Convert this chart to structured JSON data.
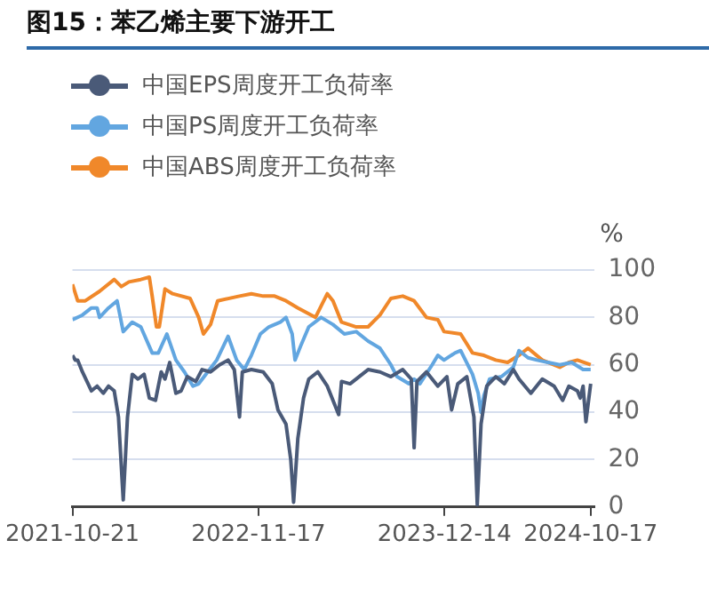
{
  "chart_data": {
    "type": "line",
    "title": "图15：苯乙烯主要下游开工",
    "ylabel": "%",
    "xlim": [
      "2021-10-21",
      "2024-10-24"
    ],
    "xticks": [
      "2021-10-21",
      "2022-11-17",
      "2023-12-14",
      "2024-10-17"
    ],
    "ylim": [
      0,
      100
    ],
    "yticks": [
      0,
      20,
      40,
      60,
      80,
      100
    ],
    "grid": "y",
    "legend": "top left",
    "marker": "none",
    "line_style": "solid",
    "series": [
      {
        "name": "中国EPS周度开工负荷率",
        "color": "#4a5a78",
        "x": [
          "2021-10-21",
          "2021-10-27",
          "2021-11-01",
          "2021-11-11",
          "2021-11-30",
          "2021-12-12",
          "2021-12-25",
          "2022-01-05",
          "2022-01-17",
          "2022-01-26",
          "2022-02-05",
          "2022-02-14",
          "2022-02-24",
          "2022-03-08",
          "2022-03-21",
          "2022-04-01",
          "2022-04-14",
          "2022-04-26",
          "2022-05-04",
          "2022-05-14",
          "2022-05-27",
          "2022-06-07",
          "2022-06-20",
          "2022-07-08",
          "2022-07-21",
          "2022-08-08",
          "2022-08-27",
          "2022-09-14",
          "2022-09-27",
          "2022-10-08",
          "2022-10-14",
          "2022-11-02",
          "2022-11-27",
          "2022-12-16",
          "2022-12-28",
          "2023-01-14",
          "2023-01-24",
          "2023-01-30",
          "2023-02-08",
          "2023-02-20",
          "2023-03-03",
          "2023-03-22",
          "2023-04-11",
          "2023-05-05",
          "2023-05-11",
          "2023-05-29",
          "2023-07-06",
          "2023-07-31",
          "2023-08-23",
          "2023-09-17",
          "2023-10-05",
          "2023-10-11",
          "2023-10-17",
          "2023-11-06",
          "2023-11-30",
          "2023-12-19",
          "2023-12-29",
          "2024-01-11",
          "2024-01-30",
          "2024-02-14",
          "2024-02-21",
          "2024-02-29",
          "2024-03-12",
          "2024-03-31",
          "2024-04-18",
          "2024-05-07",
          "2024-05-19",
          "2024-06-13",
          "2024-07-07",
          "2024-08-01",
          "2024-08-19",
          "2024-09-01",
          "2024-09-19",
          "2024-09-25",
          "2024-10-01",
          "2024-10-07",
          "2024-10-17"
        ],
        "values": [
          64,
          62,
          62,
          57,
          49,
          51,
          48,
          51,
          49,
          38,
          3,
          38,
          56,
          54,
          56,
          46,
          45,
          57,
          54,
          61,
          48,
          49,
          55,
          53,
          58,
          57,
          60,
          62,
          58,
          38,
          57,
          58,
          57,
          52,
          41,
          35,
          20,
          2,
          29,
          46,
          54,
          57,
          51,
          39,
          53,
          52,
          58,
          57,
          55,
          58,
          54,
          25,
          53,
          57,
          51,
          55,
          41,
          52,
          55,
          38,
          1,
          35,
          51,
          55,
          52,
          58,
          54,
          48,
          54,
          51,
          45,
          51,
          49,
          46,
          51,
          36,
          52
        ]
      },
      {
        "name": "中国PS周度开工负荷率",
        "color": "#62a6e0",
        "x": [
          "2021-10-21",
          "2021-11-11",
          "2021-11-30",
          "2021-12-12",
          "2021-12-17",
          "2022-01-05",
          "2022-01-23",
          "2022-02-05",
          "2022-02-24",
          "2022-03-14",
          "2022-04-07",
          "2022-04-20",
          "2022-05-08",
          "2022-05-27",
          "2022-06-14",
          "2022-07-02",
          "2022-07-14",
          "2022-08-02",
          "2022-08-21",
          "2022-09-14",
          "2022-10-02",
          "2022-10-18",
          "2022-11-02",
          "2022-11-21",
          "2022-12-09",
          "2023-01-02",
          "2023-01-14",
          "2023-01-27",
          "2023-02-02",
          "2023-02-14",
          "2023-03-03",
          "2023-03-29",
          "2023-04-23",
          "2023-05-17",
          "2023-06-11",
          "2023-07-06",
          "2023-07-31",
          "2023-08-23",
          "2023-09-05",
          "2023-09-30",
          "2023-10-11",
          "2023-10-23",
          "2023-11-18",
          "2023-11-30",
          "2023-12-13",
          "2024-01-05",
          "2024-01-17",
          "2024-02-11",
          "2024-02-23",
          "2024-02-29",
          "2024-03-06",
          "2024-03-18",
          "2024-04-12",
          "2024-05-07",
          "2024-05-19",
          "2024-06-07",
          "2024-06-26",
          "2024-07-19",
          "2024-08-13",
          "2024-09-07",
          "2024-10-01",
          "2024-10-17"
        ],
        "values": [
          79,
          81,
          84,
          84,
          80,
          84,
          87,
          74,
          78,
          76,
          65,
          65,
          73,
          62,
          57,
          51,
          52,
          57,
          62,
          72,
          62,
          58,
          64,
          73,
          76,
          78,
          80,
          73,
          62,
          68,
          76,
          80,
          77,
          73,
          74,
          70,
          67,
          60,
          55,
          52,
          54,
          52,
          60,
          64,
          62,
          65,
          66,
          56,
          48,
          40,
          47,
          54,
          55,
          59,
          66,
          63,
          62,
          61,
          60,
          61,
          58,
          58
        ]
      },
      {
        "name": "中国ABS周度开工负荷率",
        "color": "#f0882a",
        "x": [
          "2021-10-21",
          "2021-11-01",
          "2021-11-17",
          "2021-12-17",
          "2022-01-17",
          "2022-02-01",
          "2022-02-17",
          "2022-03-14",
          "2022-04-01",
          "2022-04-07",
          "2022-04-16",
          "2022-04-22",
          "2022-05-04",
          "2022-05-20",
          "2022-06-26",
          "2022-07-14",
          "2022-07-24",
          "2022-08-08",
          "2022-08-23",
          "2022-10-08",
          "2022-11-02",
          "2022-11-27",
          "2022-12-21",
          "2023-01-14",
          "2023-02-08",
          "2023-03-17",
          "2023-04-11",
          "2023-04-23",
          "2023-05-11",
          "2023-06-11",
          "2023-07-06",
          "2023-07-31",
          "2023-08-23",
          "2023-09-17",
          "2023-10-11",
          "2023-11-06",
          "2023-11-30",
          "2023-12-13",
          "2024-01-17",
          "2024-02-11",
          "2024-03-06",
          "2024-03-31",
          "2024-04-25",
          "2024-05-19",
          "2024-06-07",
          "2024-07-07",
          "2024-08-13",
          "2024-09-01",
          "2024-09-19",
          "2024-10-17"
        ],
        "values": [
          94,
          87,
          87,
          91,
          96,
          93,
          95,
          96,
          97,
          89,
          76,
          76,
          92,
          90,
          88,
          80,
          73,
          77,
          87,
          89,
          90,
          89,
          89,
          87,
          84,
          80,
          90,
          87,
          78,
          76,
          76,
          81,
          88,
          89,
          87,
          80,
          79,
          74,
          73,
          65,
          64,
          62,
          61,
          64,
          67,
          62,
          59,
          61,
          62,
          60
        ]
      }
    ]
  }
}
